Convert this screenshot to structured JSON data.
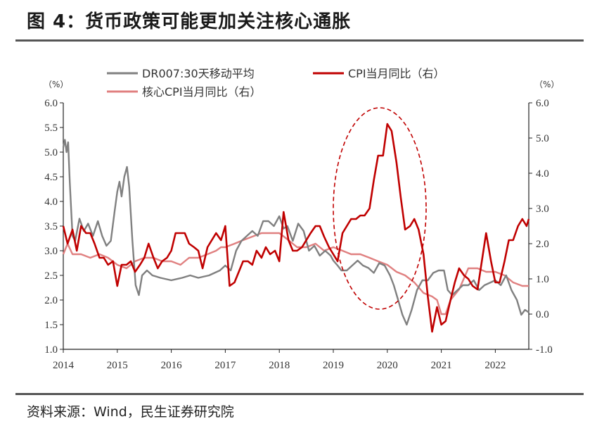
{
  "header": {
    "title": "图 4：货币政策可能更加关注核心通胀"
  },
  "footer": {
    "source": "资料来源：Wind，民生证券研究院"
  },
  "chart_data": {
    "type": "line",
    "title": "图 4：货币政策可能更加关注核心通胀",
    "x_ticks": [
      "2014",
      "2015",
      "2016",
      "2017",
      "2018",
      "2019",
      "2020",
      "2021",
      "2022"
    ],
    "y_left": {
      "unit": "（%）",
      "range": [
        1.0,
        6.0
      ],
      "ticks": [
        "6.0",
        "5.5",
        "5.0",
        "4.5",
        "4.0",
        "3.5",
        "3.0",
        "2.5",
        "2.0",
        "1.5",
        "1.0"
      ]
    },
    "y_right": {
      "unit": "（%）",
      "range": [
        -1.0,
        6.0
      ],
      "ticks": [
        "6.0",
        "5.0",
        "4.0",
        "3.0",
        "2.0",
        "1.0",
        "0.0",
        "-1.0"
      ]
    },
    "legend_position": "top",
    "grid": false,
    "annotations": [
      {
        "type": "dashed-ellipse",
        "around": "2020 CPI peak"
      }
    ],
    "series": [
      {
        "name": "DR007:30天移动平均",
        "axis": "left",
        "color": "#808080",
        "points": [
          [
            2014.0,
            5.1
          ],
          [
            2014.03,
            5.25
          ],
          [
            2014.06,
            5.0
          ],
          [
            2014.09,
            5.2
          ],
          [
            2014.12,
            4.4
          ],
          [
            2014.17,
            3.3
          ],
          [
            2014.22,
            3.2
          ],
          [
            2014.3,
            3.65
          ],
          [
            2014.38,
            3.4
          ],
          [
            2014.46,
            3.55
          ],
          [
            2014.55,
            3.3
          ],
          [
            2014.64,
            3.6
          ],
          [
            2014.72,
            3.3
          ],
          [
            2014.8,
            3.1
          ],
          [
            2014.88,
            3.2
          ],
          [
            2014.95,
            3.8
          ],
          [
            2015.0,
            4.2
          ],
          [
            2015.04,
            4.4
          ],
          [
            2015.08,
            4.1
          ],
          [
            2015.13,
            4.5
          ],
          [
            2015.18,
            4.7
          ],
          [
            2015.22,
            4.3
          ],
          [
            2015.28,
            3.2
          ],
          [
            2015.34,
            2.3
          ],
          [
            2015.4,
            2.1
          ],
          [
            2015.46,
            2.5
          ],
          [
            2015.55,
            2.6
          ],
          [
            2015.65,
            2.5
          ],
          [
            2015.8,
            2.45
          ],
          [
            2016.0,
            2.4
          ],
          [
            2016.2,
            2.45
          ],
          [
            2016.35,
            2.5
          ],
          [
            2016.5,
            2.45
          ],
          [
            2016.7,
            2.5
          ],
          [
            2016.9,
            2.6
          ],
          [
            2017.0,
            2.7
          ],
          [
            2017.1,
            2.6
          ],
          [
            2017.2,
            3.0
          ],
          [
            2017.3,
            3.2
          ],
          [
            2017.4,
            3.3
          ],
          [
            2017.5,
            3.4
          ],
          [
            2017.6,
            3.3
          ],
          [
            2017.7,
            3.6
          ],
          [
            2017.8,
            3.6
          ],
          [
            2017.9,
            3.5
          ],
          [
            2018.0,
            3.7
          ],
          [
            2018.08,
            3.45
          ],
          [
            2018.15,
            3.5
          ],
          [
            2018.25,
            3.2
          ],
          [
            2018.35,
            3.55
          ],
          [
            2018.45,
            3.4
          ],
          [
            2018.55,
            3.0
          ],
          [
            2018.65,
            3.1
          ],
          [
            2018.75,
            2.9
          ],
          [
            2018.85,
            3.0
          ],
          [
            2018.95,
            2.9
          ],
          [
            2019.0,
            2.8
          ],
          [
            2019.08,
            2.7
          ],
          [
            2019.15,
            2.6
          ],
          [
            2019.25,
            2.6
          ],
          [
            2019.35,
            2.7
          ],
          [
            2019.45,
            2.8
          ],
          [
            2019.55,
            2.7
          ],
          [
            2019.65,
            2.65
          ],
          [
            2019.75,
            2.55
          ],
          [
            2019.85,
            2.75
          ],
          [
            2019.95,
            2.7
          ],
          [
            2020.05,
            2.5
          ],
          [
            2020.12,
            2.3
          ],
          [
            2020.2,
            2.0
          ],
          [
            2020.28,
            1.7
          ],
          [
            2020.36,
            1.5
          ],
          [
            2020.45,
            1.8
          ],
          [
            2020.55,
            2.2
          ],
          [
            2020.65,
            2.4
          ],
          [
            2020.75,
            2.4
          ],
          [
            2020.85,
            2.55
          ],
          [
            2020.95,
            2.6
          ],
          [
            2021.05,
            2.6
          ],
          [
            2021.12,
            2.2
          ],
          [
            2021.2,
            2.1
          ],
          [
            2021.3,
            2.2
          ],
          [
            2021.4,
            2.3
          ],
          [
            2021.5,
            2.3
          ],
          [
            2021.6,
            2.4
          ],
          [
            2021.7,
            2.2
          ],
          [
            2021.8,
            2.3
          ],
          [
            2021.9,
            2.35
          ],
          [
            2022.0,
            2.4
          ],
          [
            2022.1,
            2.3
          ],
          [
            2022.2,
            2.5
          ],
          [
            2022.3,
            2.2
          ],
          [
            2022.4,
            2.0
          ],
          [
            2022.48,
            1.7
          ],
          [
            2022.55,
            1.8
          ],
          [
            2022.62,
            1.75
          ]
        ]
      },
      {
        "name": "CPI当月同比（右）",
        "axis": "right",
        "color": "#c00000",
        "points": [
          [
            2014.0,
            2.5
          ],
          [
            2014.08,
            2.0
          ],
          [
            2014.17,
            2.4
          ],
          [
            2014.25,
            1.8
          ],
          [
            2014.33,
            2.5
          ],
          [
            2014.42,
            2.3
          ],
          [
            2014.5,
            2.3
          ],
          [
            2014.58,
            2.0
          ],
          [
            2014.67,
            1.6
          ],
          [
            2014.75,
            1.6
          ],
          [
            2014.83,
            1.4
          ],
          [
            2014.92,
            1.5
          ],
          [
            2015.0,
            0.8
          ],
          [
            2015.08,
            1.4
          ],
          [
            2015.17,
            1.4
          ],
          [
            2015.25,
            1.5
          ],
          [
            2015.33,
            1.2
          ],
          [
            2015.42,
            1.4
          ],
          [
            2015.5,
            1.6
          ],
          [
            2015.58,
            2.0
          ],
          [
            2015.67,
            1.6
          ],
          [
            2015.75,
            1.3
          ],
          [
            2015.83,
            1.5
          ],
          [
            2015.92,
            1.6
          ],
          [
            2016.0,
            1.8
          ],
          [
            2016.08,
            2.3
          ],
          [
            2016.17,
            2.3
          ],
          [
            2016.25,
            2.3
          ],
          [
            2016.33,
            2.0
          ],
          [
            2016.42,
            1.9
          ],
          [
            2016.5,
            1.8
          ],
          [
            2016.58,
            1.3
          ],
          [
            2016.67,
            1.9
          ],
          [
            2016.75,
            2.1
          ],
          [
            2016.83,
            2.3
          ],
          [
            2016.92,
            2.1
          ],
          [
            2017.0,
            2.5
          ],
          [
            2017.08,
            0.8
          ],
          [
            2017.17,
            0.9
          ],
          [
            2017.25,
            1.2
          ],
          [
            2017.33,
            1.5
          ],
          [
            2017.42,
            1.5
          ],
          [
            2017.5,
            1.4
          ],
          [
            2017.58,
            1.8
          ],
          [
            2017.67,
            1.6
          ],
          [
            2017.75,
            1.9
          ],
          [
            2017.83,
            1.7
          ],
          [
            2017.92,
            1.8
          ],
          [
            2018.0,
            1.5
          ],
          [
            2018.08,
            2.9
          ],
          [
            2018.17,
            2.1
          ],
          [
            2018.25,
            1.8
          ],
          [
            2018.33,
            1.8
          ],
          [
            2018.42,
            1.9
          ],
          [
            2018.5,
            2.1
          ],
          [
            2018.58,
            2.3
          ],
          [
            2018.67,
            2.5
          ],
          [
            2018.75,
            2.5
          ],
          [
            2018.83,
            2.2
          ],
          [
            2018.92,
            1.9
          ],
          [
            2019.0,
            1.7
          ],
          [
            2019.08,
            1.5
          ],
          [
            2019.17,
            2.3
          ],
          [
            2019.25,
            2.5
          ],
          [
            2019.33,
            2.7
          ],
          [
            2019.42,
            2.7
          ],
          [
            2019.5,
            2.8
          ],
          [
            2019.58,
            2.8
          ],
          [
            2019.67,
            3.0
          ],
          [
            2019.75,
            3.8
          ],
          [
            2019.83,
            4.5
          ],
          [
            2019.92,
            4.5
          ],
          [
            2020.0,
            5.4
          ],
          [
            2020.08,
            5.2
          ],
          [
            2020.17,
            4.3
          ],
          [
            2020.25,
            3.3
          ],
          [
            2020.33,
            2.4
          ],
          [
            2020.42,
            2.5
          ],
          [
            2020.5,
            2.7
          ],
          [
            2020.58,
            2.4
          ],
          [
            2020.67,
            1.7
          ],
          [
            2020.75,
            0.5
          ],
          [
            2020.83,
            -0.5
          ],
          [
            2020.92,
            0.2
          ],
          [
            2021.0,
            -0.3
          ],
          [
            2021.08,
            -0.2
          ],
          [
            2021.17,
            0.4
          ],
          [
            2021.25,
            0.9
          ],
          [
            2021.33,
            1.3
          ],
          [
            2021.42,
            1.1
          ],
          [
            2021.5,
            1.0
          ],
          [
            2021.58,
            0.8
          ],
          [
            2021.67,
            0.7
          ],
          [
            2021.75,
            1.5
          ],
          [
            2021.83,
            2.3
          ],
          [
            2021.92,
            1.5
          ],
          [
            2022.0,
            0.9
          ],
          [
            2022.08,
            0.9
          ],
          [
            2022.17,
            1.5
          ],
          [
            2022.25,
            2.1
          ],
          [
            2022.33,
            2.1
          ],
          [
            2022.42,
            2.5
          ],
          [
            2022.5,
            2.7
          ],
          [
            2022.58,
            2.5
          ],
          [
            2022.62,
            2.7
          ]
        ]
      },
      {
        "name": "核心CPI当月同比（右）",
        "axis": "right",
        "color": "#e08080",
        "points": [
          [
            2014.0,
            1.7
          ],
          [
            2014.08,
            2.0
          ],
          [
            2014.17,
            1.7
          ],
          [
            2014.33,
            1.7
          ],
          [
            2014.5,
            1.6
          ],
          [
            2014.67,
            1.7
          ],
          [
            2014.83,
            1.6
          ],
          [
            2015.0,
            1.4
          ],
          [
            2015.17,
            1.3
          ],
          [
            2015.33,
            1.5
          ],
          [
            2015.5,
            1.6
          ],
          [
            2015.67,
            1.6
          ],
          [
            2015.83,
            1.5
          ],
          [
            2016.0,
            1.5
          ],
          [
            2016.17,
            1.4
          ],
          [
            2016.33,
            1.6
          ],
          [
            2016.5,
            1.6
          ],
          [
            2016.67,
            1.7
          ],
          [
            2016.83,
            1.8
          ],
          [
            2016.92,
            1.9
          ],
          [
            2017.0,
            1.9
          ],
          [
            2017.17,
            2.0
          ],
          [
            2017.33,
            2.1
          ],
          [
            2017.5,
            2.2
          ],
          [
            2017.67,
            2.3
          ],
          [
            2017.83,
            2.3
          ],
          [
            2018.0,
            2.3
          ],
          [
            2018.17,
            2.1
          ],
          [
            2018.33,
            1.9
          ],
          [
            2018.5,
            1.9
          ],
          [
            2018.67,
            2.0
          ],
          [
            2018.83,
            1.8
          ],
          [
            2019.0,
            1.9
          ],
          [
            2019.17,
            1.8
          ],
          [
            2019.33,
            1.7
          ],
          [
            2019.5,
            1.7
          ],
          [
            2019.67,
            1.6
          ],
          [
            2019.83,
            1.5
          ],
          [
            2020.0,
            1.4
          ],
          [
            2020.17,
            1.2
          ],
          [
            2020.33,
            1.1
          ],
          [
            2020.5,
            0.9
          ],
          [
            2020.67,
            0.6
          ],
          [
            2020.83,
            0.5
          ],
          [
            2020.92,
            0.4
          ],
          [
            2021.0,
            0.0
          ],
          [
            2021.08,
            0.0
          ],
          [
            2021.17,
            0.4
          ],
          [
            2021.33,
            0.7
          ],
          [
            2021.5,
            1.3
          ],
          [
            2021.67,
            1.3
          ],
          [
            2021.83,
            1.2
          ],
          [
            2022.0,
            1.2
          ],
          [
            2022.17,
            1.1
          ],
          [
            2022.33,
            0.9
          ],
          [
            2022.5,
            0.8
          ],
          [
            2022.62,
            0.8
          ]
        ]
      }
    ]
  }
}
